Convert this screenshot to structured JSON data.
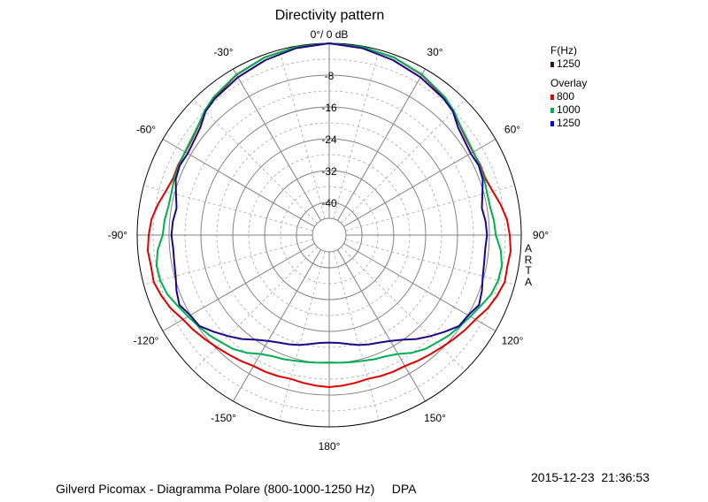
{
  "chart_data": {
    "type": "polar",
    "title": "Directivity pattern",
    "top_label": "0°/ 0 dB",
    "radial_ticks": [
      "-8",
      "-16",
      "-24",
      "-32",
      "-40"
    ],
    "radial_range_db": [
      -44,
      0
    ],
    "angle_labels": [
      {
        "angle": 0,
        "label": ""
      },
      {
        "angle": 30,
        "label": "30°"
      },
      {
        "angle": 60,
        "label": "60°"
      },
      {
        "angle": 90,
        "label": "90°"
      },
      {
        "angle": 120,
        "label": "120°"
      },
      {
        "angle": 150,
        "label": "150°"
      },
      {
        "angle": 180,
        "label": "180°"
      },
      {
        "angle": -150,
        "label": "-150°"
      },
      {
        "angle": -120,
        "label": "-120°"
      },
      {
        "angle": -90,
        "label": "-90°"
      },
      {
        "angle": -60,
        "label": "-60°"
      },
      {
        "angle": -30,
        "label": "-30°"
      }
    ],
    "grid": true,
    "legend_position": "top-right",
    "legend": {
      "header": "F(Hz)",
      "main": {
        "label": "1250",
        "color": "#3a0a3a"
      },
      "overlay_header": "Overlay",
      "overlay": [
        {
          "label": "800",
          "color": "#e00000"
        },
        {
          "label": "1000",
          "color": "#00b050"
        },
        {
          "label": "1250",
          "color": "#0000e0"
        }
      ]
    },
    "series_angles": [
      0,
      10,
      20,
      30,
      40,
      45,
      50,
      55,
      60,
      65,
      70,
      75,
      80,
      85,
      90,
      95,
      100,
      105,
      110,
      115,
      120,
      125,
      130,
      135,
      140,
      145,
      150,
      155,
      160,
      165,
      170,
      175,
      180
    ],
    "series": [
      {
        "name": "800",
        "color": "#e00000",
        "values": [
          0,
          -0.2,
          -0.7,
          -1.7,
          -3.2,
          -4.2,
          -5.4,
          -6.2,
          -6.5,
          -6.4,
          -6.5,
          -5.7,
          -4.5,
          -3.4,
          -2.9,
          -2.5,
          -2.8,
          -2.6,
          -3.4,
          -4.4,
          -5.8,
          -6.6,
          -7.5,
          -8.3,
          -9.0,
          -9.6,
          -10.2,
          -10.3,
          -10.5,
          -10.8,
          -10.5,
          -10.2,
          -10.0
        ]
      },
      {
        "name": "1000",
        "color": "#00b050",
        "values": [
          0,
          -0.2,
          -0.7,
          -1.6,
          -3.0,
          -4.0,
          -5.3,
          -6.0,
          -6.4,
          -6.6,
          -6.8,
          -7.2,
          -7.2,
          -6.7,
          -6.4,
          -5.0,
          -4.2,
          -4.3,
          -4.9,
          -6.2,
          -7.3,
          -8.2,
          -9.0,
          -10.0,
          -10.8,
          -12.1,
          -13.7,
          -14.6,
          -15.0,
          -15.5,
          -15.8,
          -16.0,
          -16.2
        ]
      },
      {
        "name": "1250",
        "color": "#0000e0",
        "values": [
          0,
          -0.5,
          -1.4,
          -2.4,
          -3.5,
          -4.3,
          -6.0,
          -6.8,
          -7.2,
          -6.8,
          -7.2,
          -8.4,
          -9.3,
          -8.8,
          -8.6,
          -8.9,
          -8.7,
          -8.3,
          -7.4,
          -6.7,
          -7.9,
          -8.4,
          -10.4,
          -12.3,
          -14.1,
          -16.1,
          -17.5,
          -18.4,
          -19.0,
          -19.6,
          -20.4,
          -21.0,
          -21.2
        ]
      },
      {
        "name": "1250 main",
        "color": "#3a0a3a",
        "values": [
          0,
          -0.5,
          -1.4,
          -2.4,
          -3.5,
          -4.3,
          -6.0,
          -6.8,
          -7.2,
          -6.8,
          -7.2,
          -8.4,
          -9.3,
          -8.8,
          -8.6,
          -8.9,
          -8.7,
          -8.3,
          -7.4,
          -6.7,
          -7.9,
          -8.4,
          -10.4,
          -12.3,
          -14.1,
          -16.1,
          -17.5,
          -18.4,
          -19.0,
          -19.6,
          -20.4,
          -21.0,
          -21.2
        ]
      }
    ]
  },
  "side_label": [
    "A",
    "R",
    "T",
    "A"
  ],
  "footer": {
    "description": "Gilverd Picomax - Diagramma Polare (800-1000-1250 Hz)     DPA",
    "timestamp": "2015-12-23  21:36:53"
  }
}
